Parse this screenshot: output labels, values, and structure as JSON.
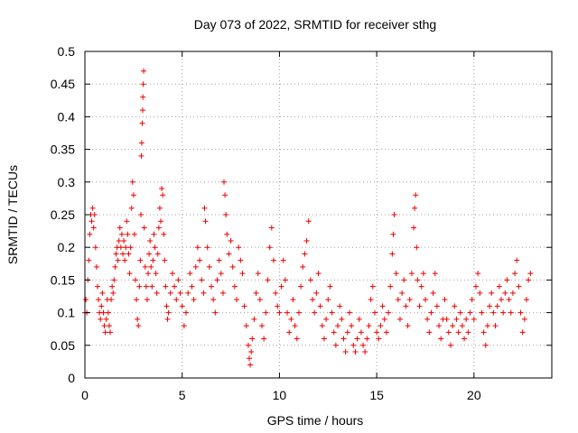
{
  "chart_data": {
    "type": "scatter",
    "title": "Day 073 of 2022, SRMTID for receiver sthg",
    "xlabel": "GPS time / hours",
    "ylabel": "SRMTID / TECUs",
    "xlim": [
      0,
      24
    ],
    "ylim": [
      0,
      0.5
    ],
    "xticks": [
      0,
      5,
      10,
      15,
      20
    ],
    "xtick_labels": [
      "0",
      "5",
      "10",
      "15",
      "20"
    ],
    "yticks": [
      0,
      0.05,
      0.1,
      0.15,
      0.2,
      0.25,
      0.3,
      0.35,
      0.4,
      0.45,
      0.5
    ],
    "ytick_labels": [
      "0",
      "0.05",
      "0.1",
      "0.15",
      "0.2",
      "0.25",
      "0.3",
      "0.35",
      "0.4",
      "0.45",
      "0.5"
    ],
    "grid": true,
    "marker": "+",
    "color": "#ee0000",
    "series": [
      {
        "name": "SRMTID",
        "points": [
          [
            0.0,
            0.1
          ],
          [
            0.05,
            0.12
          ],
          [
            0.1,
            0.1
          ],
          [
            0.15,
            0.15
          ],
          [
            0.2,
            0.18
          ],
          [
            0.25,
            0.22
          ],
          [
            0.3,
            0.25
          ],
          [
            0.35,
            0.24
          ],
          [
            0.4,
            0.26
          ],
          [
            0.45,
            0.23
          ],
          [
            0.5,
            0.25
          ],
          [
            0.55,
            0.2
          ],
          [
            0.6,
            0.17
          ],
          [
            0.65,
            0.14
          ],
          [
            0.7,
            0.12
          ],
          [
            0.75,
            0.1
          ],
          [
            0.8,
            0.09
          ],
          [
            0.85,
            0.11
          ],
          [
            0.9,
            0.13
          ],
          [
            0.95,
            0.1
          ],
          [
            1.0,
            0.08
          ],
          [
            1.05,
            0.07
          ],
          [
            1.1,
            0.09
          ],
          [
            1.15,
            0.12
          ],
          [
            1.2,
            0.1
          ],
          [
            1.25,
            0.08
          ],
          [
            1.3,
            0.07
          ],
          [
            1.35,
            0.12
          ],
          [
            1.4,
            0.14
          ],
          [
            1.45,
            0.13
          ],
          [
            1.5,
            0.15
          ],
          [
            1.55,
            0.17
          ],
          [
            1.6,
            0.19
          ],
          [
            1.65,
            0.2
          ],
          [
            1.7,
            0.18
          ],
          [
            1.75,
            0.21
          ],
          [
            1.8,
            0.23
          ],
          [
            1.85,
            0.2
          ],
          [
            1.9,
            0.22
          ],
          [
            1.95,
            0.19
          ],
          [
            2.0,
            0.21
          ],
          [
            2.05,
            0.18
          ],
          [
            2.1,
            0.2
          ],
          [
            2.15,
            0.24
          ],
          [
            2.2,
            0.22
          ],
          [
            2.25,
            0.19
          ],
          [
            2.3,
            0.16
          ],
          [
            2.35,
            0.2
          ],
          [
            2.4,
            0.26
          ],
          [
            2.45,
            0.3
          ],
          [
            2.5,
            0.28
          ],
          [
            2.55,
            0.22
          ],
          [
            2.6,
            0.15
          ],
          [
            2.65,
            0.12
          ],
          [
            2.7,
            0.09
          ],
          [
            2.75,
            0.08
          ],
          [
            2.8,
            0.14
          ],
          [
            2.85,
            0.18
          ],
          [
            2.88,
            0.25
          ],
          [
            2.9,
            0.34
          ],
          [
            2.92,
            0.36
          ],
          [
            2.95,
            0.39
          ],
          [
            2.97,
            0.41
          ],
          [
            2.98,
            0.43
          ],
          [
            3.0,
            0.45
          ],
          [
            3.02,
            0.47
          ],
          [
            3.05,
            0.23
          ],
          [
            3.1,
            0.17
          ],
          [
            3.15,
            0.14
          ],
          [
            3.2,
            0.12
          ],
          [
            3.25,
            0.16
          ],
          [
            3.3,
            0.19
          ],
          [
            3.35,
            0.21
          ],
          [
            3.4,
            0.17
          ],
          [
            3.45,
            0.14
          ],
          [
            3.5,
            0.18
          ],
          [
            3.55,
            0.22
          ],
          [
            3.6,
            0.2
          ],
          [
            3.65,
            0.16
          ],
          [
            3.7,
            0.13
          ],
          [
            3.75,
            0.19
          ],
          [
            3.8,
            0.23
          ],
          [
            3.85,
            0.26
          ],
          [
            3.9,
            0.24
          ],
          [
            3.95,
            0.29
          ],
          [
            4.0,
            0.28
          ],
          [
            4.05,
            0.22
          ],
          [
            4.1,
            0.18
          ],
          [
            4.15,
            0.14
          ],
          [
            4.2,
            0.11
          ],
          [
            4.25,
            0.09
          ],
          [
            4.3,
            0.1
          ],
          [
            4.4,
            0.13
          ],
          [
            4.5,
            0.16
          ],
          [
            4.6,
            0.14
          ],
          [
            4.7,
            0.12
          ],
          [
            4.8,
            0.15
          ],
          [
            4.9,
            0.13
          ],
          [
            5.0,
            0.11
          ],
          [
            5.1,
            0.08
          ],
          [
            5.2,
            0.1
          ],
          [
            5.3,
            0.13
          ],
          [
            5.4,
            0.16
          ],
          [
            5.5,
            0.14
          ],
          [
            5.6,
            0.12
          ],
          [
            5.7,
            0.17
          ],
          [
            5.8,
            0.2
          ],
          [
            5.9,
            0.18
          ],
          [
            6.0,
            0.15
          ],
          [
            6.1,
            0.13
          ],
          [
            6.15,
            0.26
          ],
          [
            6.2,
            0.24
          ],
          [
            6.3,
            0.2
          ],
          [
            6.4,
            0.17
          ],
          [
            6.5,
            0.14
          ],
          [
            6.6,
            0.12
          ],
          [
            6.7,
            0.1
          ],
          [
            6.8,
            0.15
          ],
          [
            6.9,
            0.18
          ],
          [
            7.0,
            0.16
          ],
          [
            7.1,
            0.13
          ],
          [
            7.15,
            0.3
          ],
          [
            7.2,
            0.28
          ],
          [
            7.25,
            0.25
          ],
          [
            7.3,
            0.22
          ],
          [
            7.4,
            0.19
          ],
          [
            7.5,
            0.21
          ],
          [
            7.6,
            0.17
          ],
          [
            7.7,
            0.14
          ],
          [
            7.8,
            0.12
          ],
          [
            7.9,
            0.2
          ],
          [
            8.0,
            0.18
          ],
          [
            8.1,
            0.16
          ],
          [
            8.2,
            0.11
          ],
          [
            8.3,
            0.08
          ],
          [
            8.4,
            0.05
          ],
          [
            8.45,
            0.03
          ],
          [
            8.5,
            0.02
          ],
          [
            8.55,
            0.04
          ],
          [
            8.6,
            0.06
          ],
          [
            8.7,
            0.09
          ],
          [
            8.8,
            0.13
          ],
          [
            8.9,
            0.16
          ],
          [
            9.0,
            0.12
          ],
          [
            9.1,
            0.08
          ],
          [
            9.2,
            0.06
          ],
          [
            9.3,
            0.1
          ],
          [
            9.4,
            0.15
          ],
          [
            9.5,
            0.2
          ],
          [
            9.6,
            0.23
          ],
          [
            9.7,
            0.18
          ],
          [
            9.8,
            0.13
          ],
          [
            9.9,
            0.11
          ],
          [
            10.0,
            0.1
          ],
          [
            10.1,
            0.14
          ],
          [
            10.2,
            0.18
          ],
          [
            10.3,
            0.15
          ],
          [
            10.4,
            0.1
          ],
          [
            10.5,
            0.07
          ],
          [
            10.6,
            0.09
          ],
          [
            10.7,
            0.12
          ],
          [
            10.8,
            0.08
          ],
          [
            10.9,
            0.06
          ],
          [
            11.0,
            0.1
          ],
          [
            11.1,
            0.14
          ],
          [
            11.2,
            0.17
          ],
          [
            11.3,
            0.19
          ],
          [
            11.4,
            0.21
          ],
          [
            11.5,
            0.24
          ],
          [
            11.6,
            0.15
          ],
          [
            11.7,
            0.12
          ],
          [
            11.8,
            0.1
          ],
          [
            11.9,
            0.13
          ],
          [
            12.0,
            0.16
          ],
          [
            12.1,
            0.11
          ],
          [
            12.2,
            0.08
          ],
          [
            12.3,
            0.06
          ],
          [
            12.4,
            0.09
          ],
          [
            12.5,
            0.12
          ],
          [
            12.6,
            0.14
          ],
          [
            12.7,
            0.1
          ],
          [
            12.8,
            0.07
          ],
          [
            12.9,
            0.05
          ],
          [
            13.0,
            0.08
          ],
          [
            13.1,
            0.11
          ],
          [
            13.2,
            0.09
          ],
          [
            13.3,
            0.06
          ],
          [
            13.4,
            0.04
          ],
          [
            13.5,
            0.07
          ],
          [
            13.6,
            0.1
          ],
          [
            13.7,
            0.08
          ],
          [
            13.8,
            0.05
          ],
          [
            13.9,
            0.04
          ],
          [
            14.0,
            0.06
          ],
          [
            14.1,
            0.09
          ],
          [
            14.2,
            0.07
          ],
          [
            14.3,
            0.05
          ],
          [
            14.4,
            0.04
          ],
          [
            14.5,
            0.06
          ],
          [
            14.6,
            0.08
          ],
          [
            14.7,
            0.12
          ],
          [
            14.8,
            0.14
          ],
          [
            14.9,
            0.1
          ],
          [
            15.0,
            0.07
          ],
          [
            15.1,
            0.06
          ],
          [
            15.2,
            0.08
          ],
          [
            15.3,
            0.11
          ],
          [
            15.4,
            0.09
          ],
          [
            15.5,
            0.07
          ],
          [
            15.6,
            0.1
          ],
          [
            15.7,
            0.14
          ],
          [
            15.8,
            0.19
          ],
          [
            15.85,
            0.22
          ],
          [
            15.9,
            0.25
          ],
          [
            16.0,
            0.16
          ],
          [
            16.1,
            0.12
          ],
          [
            16.2,
            0.09
          ],
          [
            16.3,
            0.13
          ],
          [
            16.4,
            0.15
          ],
          [
            16.5,
            0.11
          ],
          [
            16.6,
            0.08
          ],
          [
            16.7,
            0.12
          ],
          [
            16.8,
            0.16
          ],
          [
            16.9,
            0.23
          ],
          [
            16.95,
            0.26
          ],
          [
            17.0,
            0.28
          ],
          [
            17.05,
            0.2
          ],
          [
            17.1,
            0.15
          ],
          [
            17.2,
            0.11
          ],
          [
            17.3,
            0.14
          ],
          [
            17.4,
            0.16
          ],
          [
            17.5,
            0.12
          ],
          [
            17.6,
            0.09
          ],
          [
            17.7,
            0.07
          ],
          [
            17.8,
            0.1
          ],
          [
            17.9,
            0.13
          ],
          [
            18.0,
            0.16
          ],
          [
            18.1,
            0.11
          ],
          [
            18.2,
            0.08
          ],
          [
            18.3,
            0.06
          ],
          [
            18.4,
            0.09
          ],
          [
            18.5,
            0.12
          ],
          [
            18.6,
            0.09
          ],
          [
            18.7,
            0.07
          ],
          [
            18.8,
            0.05
          ],
          [
            18.9,
            0.08
          ],
          [
            19.0,
            0.11
          ],
          [
            19.1,
            0.09
          ],
          [
            19.2,
            0.07
          ],
          [
            19.3,
            0.1
          ],
          [
            19.4,
            0.08
          ],
          [
            19.5,
            0.06
          ],
          [
            19.6,
            0.09
          ],
          [
            19.7,
            0.07
          ],
          [
            19.8,
            0.1
          ],
          [
            19.9,
            0.12
          ],
          [
            20.0,
            0.09
          ],
          [
            20.1,
            0.14
          ],
          [
            20.2,
            0.16
          ],
          [
            20.3,
            0.13
          ],
          [
            20.4,
            0.1
          ],
          [
            20.5,
            0.07
          ],
          [
            20.6,
            0.05
          ],
          [
            20.7,
            0.08
          ],
          [
            20.8,
            0.11
          ],
          [
            20.9,
            0.13
          ],
          [
            21.0,
            0.1
          ],
          [
            21.1,
            0.08
          ],
          [
            21.2,
            0.11
          ],
          [
            21.3,
            0.14
          ],
          [
            21.4,
            0.12
          ],
          [
            21.5,
            0.1
          ],
          [
            21.6,
            0.13
          ],
          [
            21.7,
            0.15
          ],
          [
            21.8,
            0.12
          ],
          [
            21.9,
            0.1
          ],
          [
            22.0,
            0.13
          ],
          [
            22.1,
            0.16
          ],
          [
            22.2,
            0.18
          ],
          [
            22.3,
            0.14
          ],
          [
            22.4,
            0.1
          ],
          [
            22.5,
            0.07
          ],
          [
            22.6,
            0.09
          ],
          [
            22.7,
            0.12
          ],
          [
            22.8,
            0.15
          ],
          [
            22.9,
            0.16
          ]
        ]
      }
    ]
  }
}
